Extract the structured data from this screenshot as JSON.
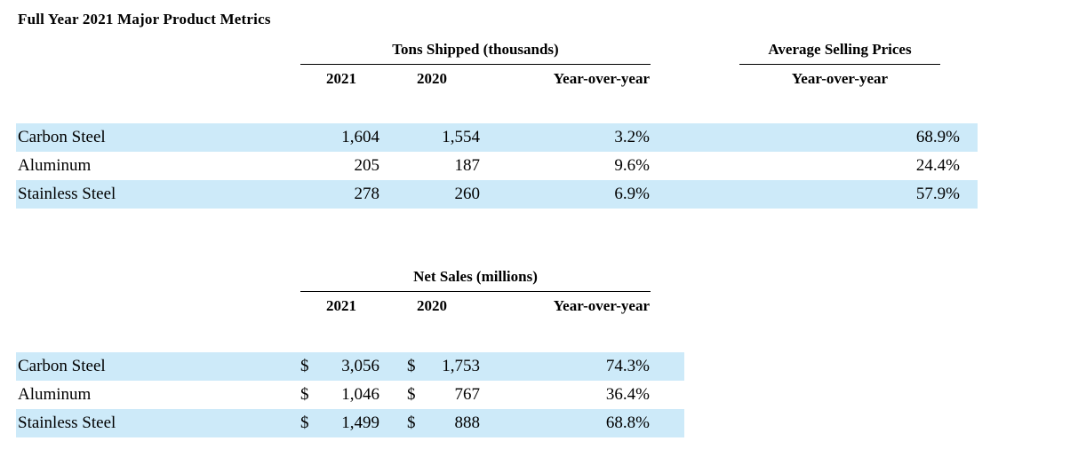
{
  "title": "Full Year 2021 Major Product Metrics",
  "colors": {
    "row_highlight": "#cdeaf9",
    "rule": "#000000"
  },
  "tons_table": {
    "group_header": "Tons Shipped (thousands)",
    "asp_group_header": "Average Selling Prices",
    "columns": [
      "2021",
      "2020",
      "Year-over-year"
    ],
    "asp_column": "Year-over-year",
    "rows": [
      {
        "label": "Carbon Steel",
        "y2021": "1,604",
        "y2020": "1,554",
        "yoy": "3.2%",
        "asp_yoy": "68.9%"
      },
      {
        "label": "Aluminum",
        "y2021": "205",
        "y2020": "187",
        "yoy": "9.6%",
        "asp_yoy": "24.4%"
      },
      {
        "label": "Stainless Steel",
        "y2021": "278",
        "y2020": "260",
        "yoy": "6.9%",
        "asp_yoy": "57.9%"
      }
    ]
  },
  "sales_table": {
    "group_header": "Net Sales (millions)",
    "columns": [
      "2021",
      "2020",
      "Year-over-year"
    ],
    "currency_symbol": "$",
    "rows": [
      {
        "label": "Carbon Steel",
        "y2021": "3,056",
        "y2020": "1,753",
        "yoy": "74.3%"
      },
      {
        "label": "Aluminum",
        "y2021": "1,046",
        "y2020": "767",
        "yoy": "36.4%"
      },
      {
        "label": "Stainless Steel",
        "y2021": "1,499",
        "y2020": "888",
        "yoy": "68.8%"
      }
    ]
  }
}
